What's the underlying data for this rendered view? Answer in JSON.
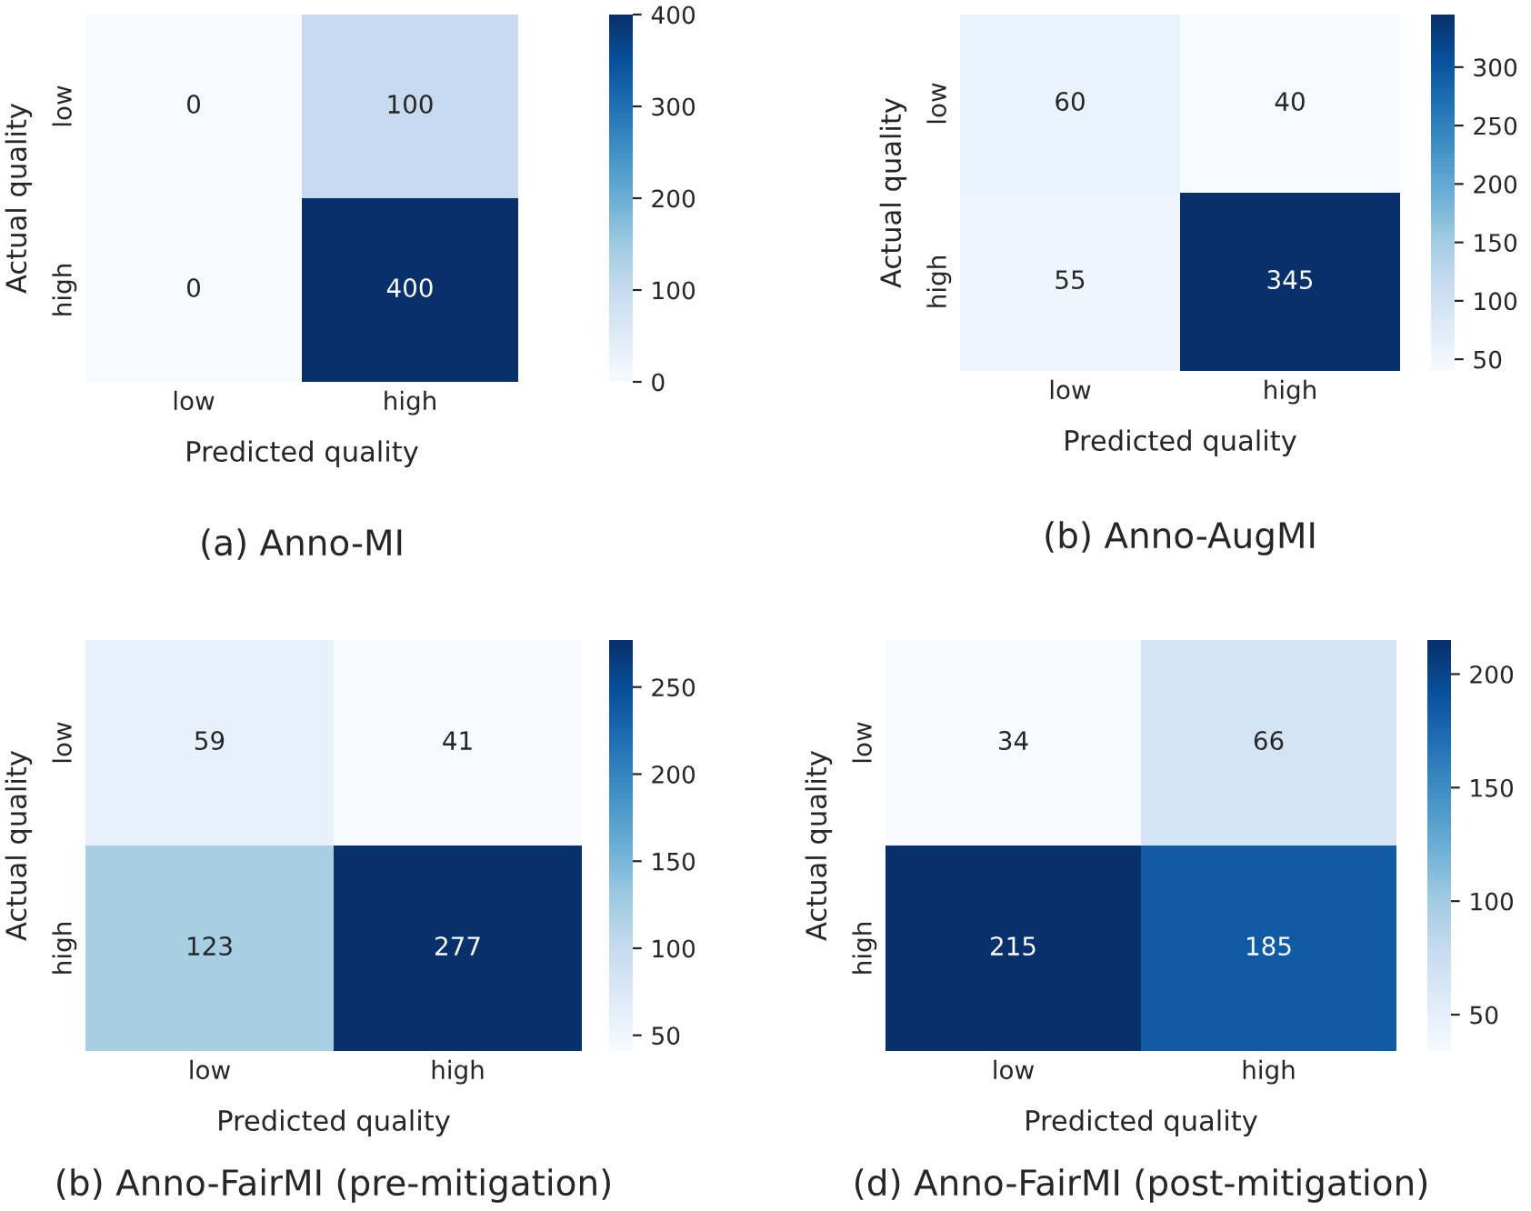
{
  "chart_data": [
    {
      "type": "heatmap",
      "title": "(a) Anno-MI",
      "xlabel": "Predicted quality",
      "ylabel": "Actual quality",
      "categories": [
        "low",
        "high"
      ],
      "y_categories": [
        "low",
        "high"
      ],
      "cells": [
        [
          0,
          100
        ],
        [
          0,
          400
        ]
      ],
      "clim": [
        0,
        400
      ],
      "cticks": [
        0,
        100,
        200,
        300,
        400
      ],
      "data_labels": true
    },
    {
      "type": "heatmap",
      "title": "(b) Anno-AugMI",
      "xlabel": "Predicted quality",
      "ylabel": "Actual quality",
      "categories": [
        "low",
        "high"
      ],
      "y_categories": [
        "low",
        "high"
      ],
      "cells": [
        [
          60,
          40
        ],
        [
          55,
          345
        ]
      ],
      "clim": [
        40,
        345
      ],
      "cticks": [
        50,
        100,
        150,
        200,
        250,
        300
      ],
      "data_labels": true
    },
    {
      "type": "heatmap",
      "title": "(b) Anno-FairMI (pre-mitigation)",
      "xlabel": "Predicted quality",
      "ylabel": "Actual quality",
      "categories": [
        "low",
        "high"
      ],
      "y_categories": [
        "low",
        "high"
      ],
      "cells": [
        [
          59,
          41
        ],
        [
          123,
          277
        ]
      ],
      "clim": [
        41,
        277
      ],
      "cticks": [
        50,
        100,
        150,
        200,
        250
      ],
      "data_labels": true
    },
    {
      "type": "heatmap",
      "title": "(d) Anno-FairMI (post-mitigation)",
      "xlabel": "Predicted quality",
      "ylabel": "Actual quality",
      "categories": [
        "low",
        "high"
      ],
      "y_categories": [
        "low",
        "high"
      ],
      "cells": [
        [
          34,
          66
        ],
        [
          215,
          185
        ]
      ],
      "clim": [
        34,
        215
      ],
      "cticks": [
        50,
        100,
        150,
        200
      ],
      "data_labels": true
    }
  ]
}
